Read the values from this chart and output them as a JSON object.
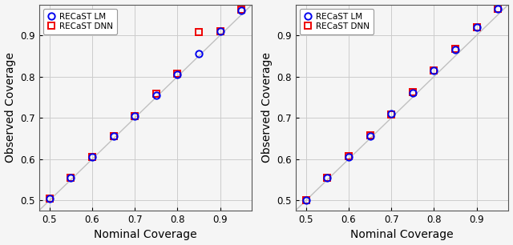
{
  "left": {
    "nominal": [
      0.5,
      0.55,
      0.6,
      0.65,
      0.7,
      0.75,
      0.8,
      0.85,
      0.9,
      0.95
    ],
    "lm": [
      0.505,
      0.555,
      0.605,
      0.655,
      0.705,
      0.755,
      0.805,
      0.855,
      0.91,
      0.96
    ],
    "dnn": [
      0.505,
      0.555,
      0.605,
      0.655,
      0.705,
      0.758,
      0.808,
      0.908,
      0.91,
      0.962
    ]
  },
  "right": {
    "nominal": [
      0.5,
      0.55,
      0.6,
      0.65,
      0.7,
      0.75,
      0.8,
      0.85,
      0.9,
      0.95
    ],
    "lm": [
      0.5,
      0.555,
      0.605,
      0.655,
      0.71,
      0.76,
      0.815,
      0.865,
      0.92,
      0.965
    ],
    "dnn": [
      0.5,
      0.555,
      0.608,
      0.658,
      0.708,
      0.762,
      0.815,
      0.868,
      0.92,
      0.965
    ]
  },
  "diag_color": "#c0c0c0",
  "lm_color": "#0000ee",
  "dnn_color": "#ee0000",
  "xlabel": "Nominal Coverage",
  "ylabel": "Observed Coverage",
  "legend_lm": "RECaST LM",
  "legend_dnn": "RECaST DNN",
  "xlim": [
    0.475,
    0.975
  ],
  "ylim": [
    0.475,
    0.975
  ],
  "xticks": [
    0.5,
    0.6,
    0.7,
    0.8,
    0.9
  ],
  "yticks": [
    0.5,
    0.6,
    0.7,
    0.8,
    0.9
  ],
  "marker_size": 6,
  "lm_edge_width": 1.4,
  "dnn_edge_width": 1.4,
  "background_color": "#f5f5f5",
  "grid_color": "#cccccc",
  "xlabel_fontsize": 10,
  "ylabel_fontsize": 10,
  "tick_fontsize": 8.5,
  "legend_fontsize": 7.5
}
